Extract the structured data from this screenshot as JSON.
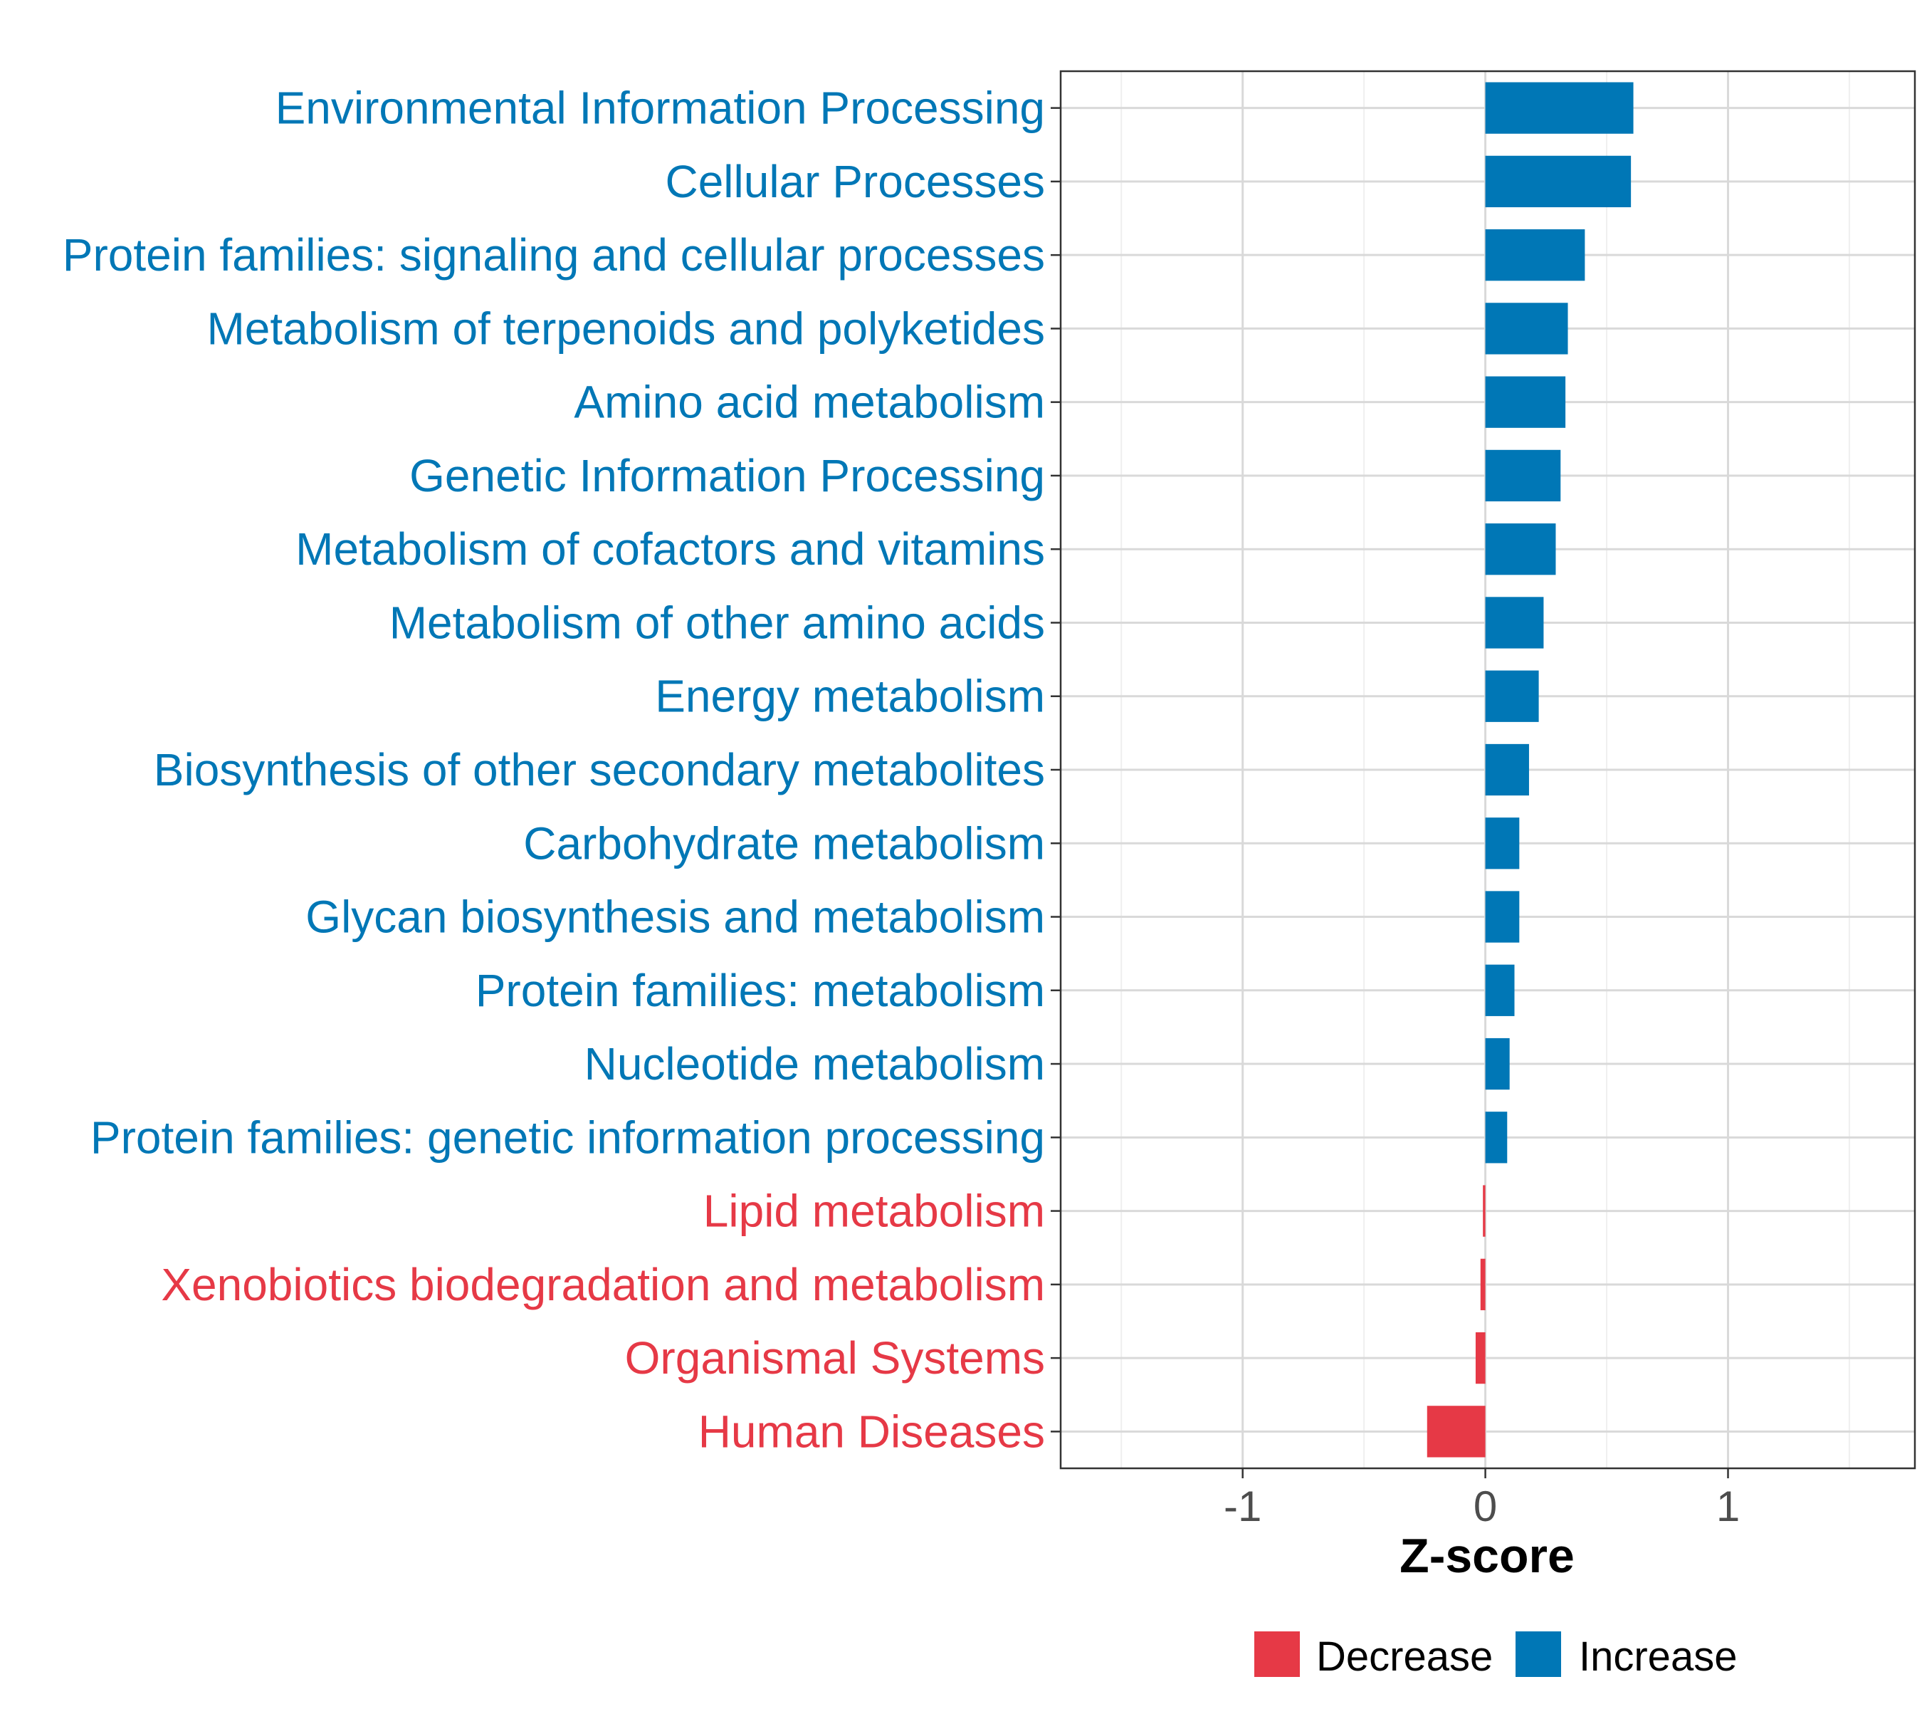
{
  "chart_data": {
    "type": "bar",
    "orientation": "horizontal",
    "xlabel": "Z-score",
    "xlim": [
      -1.75,
      1.77
    ],
    "xticks": [
      -1,
      0,
      1
    ],
    "xtick_labels": [
      "-1",
      "0",
      "1"
    ],
    "grid": true,
    "categories": [
      "Environmental Information Processing",
      "Cellular Processes",
      "Protein families: signaling and cellular processes",
      "Metabolism of terpenoids and polyketides",
      "Amino acid metabolism",
      "Genetic Information Processing",
      "Metabolism of cofactors and vitamins",
      "Metabolism of other amino acids",
      "Energy metabolism",
      "Biosynthesis of other secondary metabolites",
      "Carbohydrate metabolism",
      "Glycan biosynthesis and metabolism",
      "Protein families: metabolism",
      "Nucleotide metabolism",
      "Protein families: genetic information processing",
      "Lipid metabolism",
      "Xenobiotics biodegradation and metabolism",
      "Organismal Systems",
      "Human Diseases"
    ],
    "values": [
      0.61,
      0.6,
      0.41,
      0.34,
      0.33,
      0.31,
      0.29,
      0.24,
      0.22,
      0.18,
      0.14,
      0.14,
      0.12,
      0.1,
      0.09,
      -0.01,
      -0.02,
      -0.04,
      -0.24
    ],
    "legend": {
      "placement": "bottom",
      "entries": [
        {
          "label": "Decrease",
          "color": "#E63946"
        },
        {
          "label": "Increase",
          "color": "#0077B6"
        }
      ]
    },
    "colors": {
      "increase": "#0077B6",
      "decrease": "#E63946",
      "grid": "#d9d9d9",
      "axis_text": "#4d4d4d"
    }
  }
}
